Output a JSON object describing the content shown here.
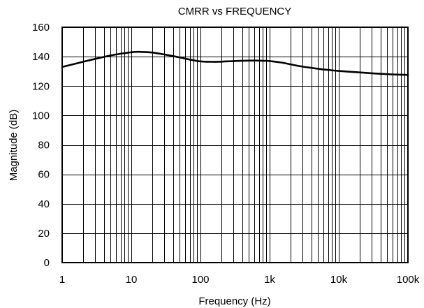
{
  "chart_data": {
    "type": "line",
    "title": "CMRR vs FREQUENCY",
    "xlabel": "Frequency (Hz)",
    "ylabel": "Magnitude (dB)",
    "x_scale": "log",
    "xlim": [
      1,
      100000
    ],
    "ylim": [
      0,
      160
    ],
    "grid": true,
    "x_ticks": [
      1,
      10,
      100,
      1000,
      10000,
      100000
    ],
    "x_tick_labels": [
      "1",
      "10",
      "100",
      "1k",
      "10k",
      "100k"
    ],
    "y_ticks": [
      0,
      20,
      40,
      60,
      80,
      100,
      120,
      140,
      160
    ],
    "y_tick_labels": [
      "0",
      "20",
      "40",
      "60",
      "80",
      "100",
      "120",
      "140",
      "160"
    ],
    "series": [
      {
        "color": "#000000",
        "x": [
          1,
          2,
          3,
          5,
          7,
          10,
          12,
          15,
          20,
          30,
          50,
          70,
          100,
          150,
          200,
          300,
          500,
          700,
          1000,
          1500,
          2000,
          3000,
          5000,
          7000,
          10000,
          20000,
          30000,
          50000,
          70000,
          100000
        ],
        "y": [
          133,
          136.5,
          138.5,
          140.8,
          142,
          143,
          143.3,
          143.2,
          142.8,
          141.5,
          139.5,
          138,
          136.8,
          136.5,
          136.6,
          137,
          137.3,
          137.3,
          137,
          136,
          134.8,
          133.2,
          131.8,
          131,
          130.3,
          129.3,
          128.7,
          128.1,
          127.8,
          127.6
        ]
      }
    ]
  }
}
